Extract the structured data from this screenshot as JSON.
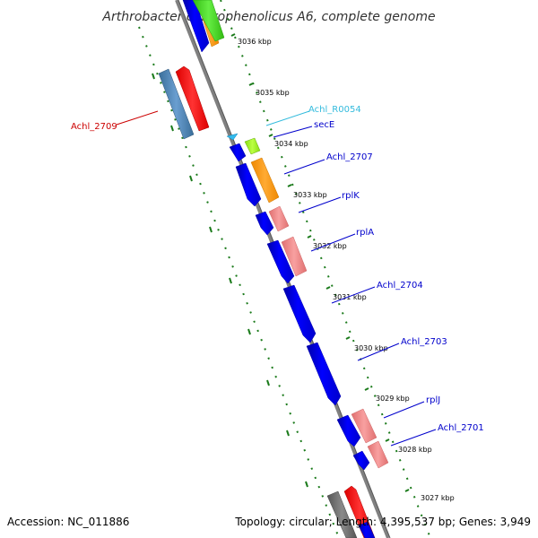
{
  "title": "Arthrobacter chlorophenolicus A6, complete genome",
  "footer": {
    "accession": "Accession: NC_011886",
    "topology": "Topology: circular; Length: 4,395,537 bp; Genes: 3,949"
  },
  "ticks": [
    "3036 kbp",
    "3035 kbp",
    "3034 kbp",
    "3033 kbp",
    "3032 kbp",
    "3031 kbp",
    "3030 kbp",
    "3029 kbp",
    "3028 kbp",
    "3027 kbp"
  ],
  "gene_labels": {
    "achl_2709": "Achl_2709",
    "achl_r0054": "Achl_R0054",
    "sece": "secE",
    "achl_2707": "Achl_2707",
    "rplk": "rplK",
    "rpla": "rplA",
    "achl_2704": "Achl_2704",
    "achl_2703": "Achl_2703",
    "rplj": "rplJ",
    "achl_2701": "Achl_2701"
  },
  "colors": {
    "backbone": "#808080",
    "tick_dots": "#1a7a1a",
    "cds_forward": "#0000ff",
    "ribosomal": "#f08080",
    "orange_gene": "#ff9900",
    "green_gene": "#44cc22",
    "light_green_gene": "#99ee22",
    "steel_gene": "#4682b4",
    "red_gene": "#ff0000",
    "gray_gene": "#707070",
    "trna_cyan": "#33bbee",
    "label_red": "#cc0000",
    "label_blue": "#0000cc",
    "label_cyan": "#33bbdd"
  }
}
